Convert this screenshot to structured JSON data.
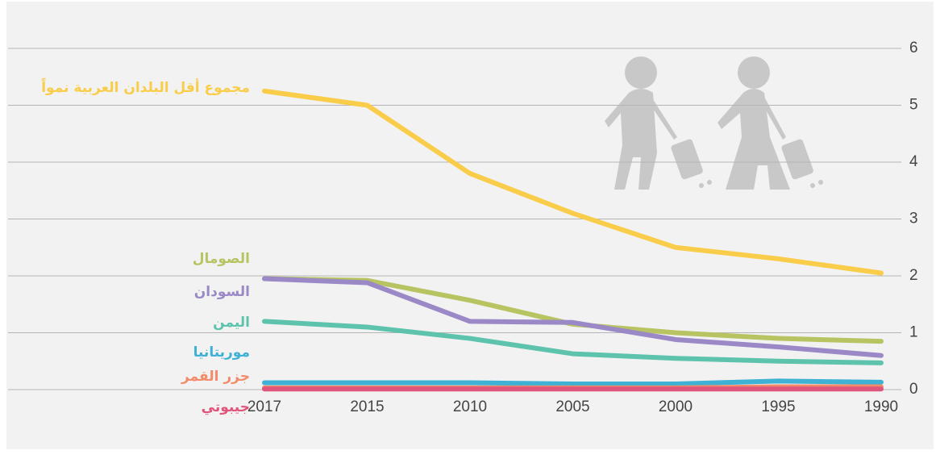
{
  "chart_data": {
    "type": "line",
    "categories": [
      "2017",
      "2015",
      "2010",
      "2005",
      "2000",
      "1995",
      "1990"
    ],
    "series": [
      {
        "name": "مجموع أقل البلدان العربية نمواً",
        "color": "#f9cd4a",
        "values": [
          5.25,
          5.0,
          3.8,
          3.1,
          2.5,
          2.3,
          2.05
        ]
      },
      {
        "name": "الصومال",
        "color": "#b8c462",
        "values": [
          1.95,
          1.92,
          1.57,
          1.15,
          1.0,
          0.9,
          0.85
        ]
      },
      {
        "name": "السودان",
        "color": "#9a89c6",
        "values": [
          1.95,
          1.88,
          1.2,
          1.18,
          0.88,
          0.75,
          0.6
        ]
      },
      {
        "name": "اليمن",
        "color": "#5ec3ad",
        "values": [
          1.2,
          1.1,
          0.9,
          0.63,
          0.55,
          0.5,
          0.47
        ]
      },
      {
        "name": "موريتانيا",
        "color": "#3fb1d5",
        "values": [
          0.12,
          0.12,
          0.12,
          0.1,
          0.1,
          0.15,
          0.13
        ]
      },
      {
        "name": "جزر القمر",
        "color": "#f28b6a",
        "values": [
          0.03,
          0.03,
          0.03,
          0.03,
          0.03,
          0.05,
          0.05
        ]
      },
      {
        "name": "جيبوتي",
        "color": "#e0557b",
        "values": [
          0.01,
          0.01,
          0.01,
          0.01,
          0.01,
          0.01,
          0.01
        ]
      }
    ],
    "ylim": [
      0,
      6
    ],
    "yticks": [
      0,
      1,
      2,
      3,
      4,
      5,
      6
    ],
    "grid": true
  }
}
